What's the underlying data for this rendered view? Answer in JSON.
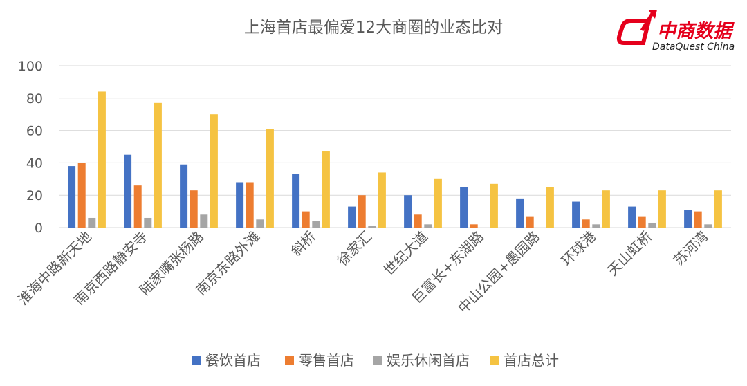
{
  "brand": {
    "name": "中商数据",
    "subtitle": "DataQuest China",
    "color": "#e5001c"
  },
  "chart_data": {
    "type": "bar",
    "title": "上海首店最偏爱12大商圈的业态比对",
    "xlabel": "",
    "ylabel": "",
    "ylim": [
      0,
      100
    ],
    "yticks": [
      0,
      20,
      40,
      60,
      80,
      100
    ],
    "grid": true,
    "legend_position": "bottom",
    "categories": [
      "淮海中路新天地",
      "南京西路静安寺",
      "陆家嘴张杨路",
      "南京东路外滩",
      "斜桥",
      "徐家汇",
      "世纪大道",
      "巨富长+东湖路",
      "中山公园+愚园路",
      "环球港",
      "天山虹桥",
      "苏河湾"
    ],
    "series": [
      {
        "name": "餐饮首店",
        "color": "#4472c4",
        "values": [
          38,
          45,
          39,
          28,
          33,
          13,
          20,
          25,
          18,
          16,
          13,
          11
        ]
      },
      {
        "name": "零售首店",
        "color": "#ed7d31",
        "values": [
          40,
          26,
          23,
          28,
          10,
          20,
          8,
          2,
          7,
          5,
          7,
          10
        ]
      },
      {
        "name": "娱乐休闲首店",
        "color": "#a5a5a5",
        "values": [
          6,
          6,
          8,
          5,
          4,
          1,
          2,
          0,
          0,
          2,
          3,
          2
        ]
      },
      {
        "name": "首店总计",
        "color": "#f5c342",
        "values": [
          84,
          77,
          70,
          61,
          47,
          34,
          30,
          27,
          25,
          23,
          23,
          23
        ]
      }
    ]
  }
}
